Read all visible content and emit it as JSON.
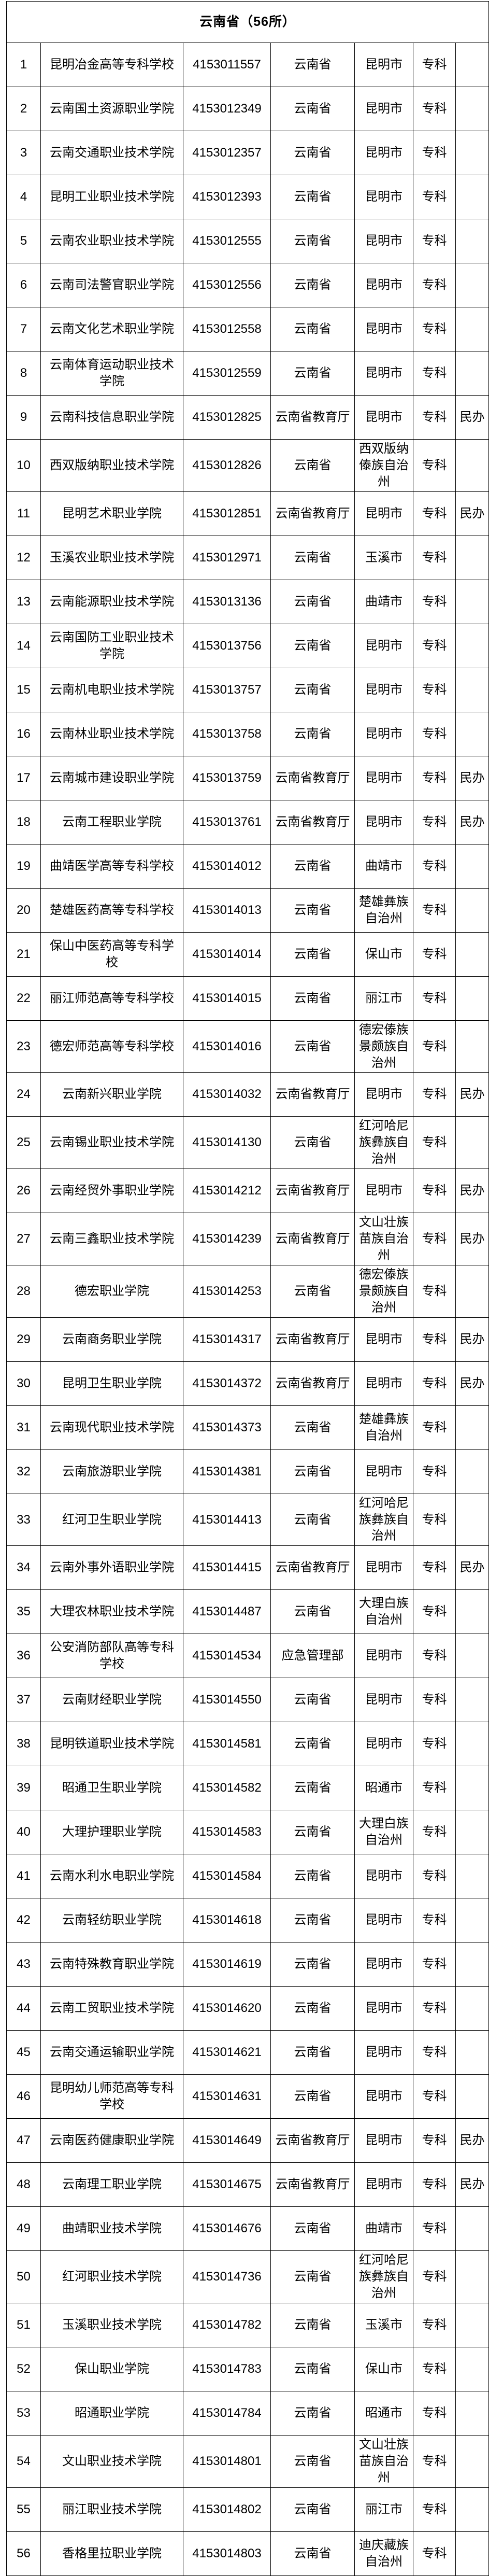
{
  "header": {
    "title": "云南省（56所）"
  },
  "rows": [
    {
      "no": "1",
      "name": "昆明冶金高等专科学校",
      "code": "4153011557",
      "dept": "云南省",
      "city": "昆明市",
      "level": "专科",
      "note": ""
    },
    {
      "no": "2",
      "name": "云南国土资源职业学院",
      "code": "4153012349",
      "dept": "云南省",
      "city": "昆明市",
      "level": "专科",
      "note": ""
    },
    {
      "no": "3",
      "name": "云南交通职业技术学院",
      "code": "4153012357",
      "dept": "云南省",
      "city": "昆明市",
      "level": "专科",
      "note": ""
    },
    {
      "no": "4",
      "name": "昆明工业职业技术学院",
      "code": "4153012393",
      "dept": "云南省",
      "city": "昆明市",
      "level": "专科",
      "note": ""
    },
    {
      "no": "5",
      "name": "云南农业职业技术学院",
      "code": "4153012555",
      "dept": "云南省",
      "city": "昆明市",
      "level": "专科",
      "note": ""
    },
    {
      "no": "6",
      "name": "云南司法警官职业学院",
      "code": "4153012556",
      "dept": "云南省",
      "city": "昆明市",
      "level": "专科",
      "note": ""
    },
    {
      "no": "7",
      "name": "云南文化艺术职业学院",
      "code": "4153012558",
      "dept": "云南省",
      "city": "昆明市",
      "level": "专科",
      "note": ""
    },
    {
      "no": "8",
      "name": "云南体育运动职业技术学院",
      "code": "4153012559",
      "dept": "云南省",
      "city": "昆明市",
      "level": "专科",
      "note": ""
    },
    {
      "no": "9",
      "name": "云南科技信息职业学院",
      "code": "4153012825",
      "dept": "云南省教育厅",
      "city": "昆明市",
      "level": "专科",
      "note": "民办"
    },
    {
      "no": "10",
      "name": "西双版纳职业技术学院",
      "code": "4153012826",
      "dept": "云南省",
      "city": "西双版纳傣族自治州",
      "level": "专科",
      "note": ""
    },
    {
      "no": "11",
      "name": "昆明艺术职业学院",
      "code": "4153012851",
      "dept": "云南省教育厅",
      "city": "昆明市",
      "level": "专科",
      "note": "民办"
    },
    {
      "no": "12",
      "name": "玉溪农业职业技术学院",
      "code": "4153012971",
      "dept": "云南省",
      "city": "玉溪市",
      "level": "专科",
      "note": ""
    },
    {
      "no": "13",
      "name": "云南能源职业技术学院",
      "code": "4153013136",
      "dept": "云南省",
      "city": "曲靖市",
      "level": "专科",
      "note": ""
    },
    {
      "no": "14",
      "name": "云南国防工业职业技术学院",
      "code": "4153013756",
      "dept": "云南省",
      "city": "昆明市",
      "level": "专科",
      "note": ""
    },
    {
      "no": "15",
      "name": "云南机电职业技术学院",
      "code": "4153013757",
      "dept": "云南省",
      "city": "昆明市",
      "level": "专科",
      "note": ""
    },
    {
      "no": "16",
      "name": "云南林业职业技术学院",
      "code": "4153013758",
      "dept": "云南省",
      "city": "昆明市",
      "level": "专科",
      "note": ""
    },
    {
      "no": "17",
      "name": "云南城市建设职业学院",
      "code": "4153013759",
      "dept": "云南省教育厅",
      "city": "昆明市",
      "level": "专科",
      "note": "民办"
    },
    {
      "no": "18",
      "name": "云南工程职业学院",
      "code": "4153013761",
      "dept": "云南省教育厅",
      "city": "昆明市",
      "level": "专科",
      "note": "民办"
    },
    {
      "no": "19",
      "name": "曲靖医学高等专科学校",
      "code": "4153014012",
      "dept": "云南省",
      "city": "曲靖市",
      "level": "专科",
      "note": ""
    },
    {
      "no": "20",
      "name": "楚雄医药高等专科学校",
      "code": "4153014013",
      "dept": "云南省",
      "city": "楚雄彝族自治州",
      "level": "专科",
      "note": ""
    },
    {
      "no": "21",
      "name": "保山中医药高等专科学校",
      "code": "4153014014",
      "dept": "云南省",
      "city": "保山市",
      "level": "专科",
      "note": ""
    },
    {
      "no": "22",
      "name": "丽江师范高等专科学校",
      "code": "4153014015",
      "dept": "云南省",
      "city": "丽江市",
      "level": "专科",
      "note": ""
    },
    {
      "no": "23",
      "name": "德宏师范高等专科学校",
      "code": "4153014016",
      "dept": "云南省",
      "city": "德宏傣族景颇族自治州",
      "level": "专科",
      "note": ""
    },
    {
      "no": "24",
      "name": "云南新兴职业学院",
      "code": "4153014032",
      "dept": "云南省教育厅",
      "city": "昆明市",
      "level": "专科",
      "note": "民办"
    },
    {
      "no": "25",
      "name": "云南锡业职业技术学院",
      "code": "4153014130",
      "dept": "云南省",
      "city": "红河哈尼族彝族自治州",
      "level": "专科",
      "note": ""
    },
    {
      "no": "26",
      "name": "云南经贸外事职业学院",
      "code": "4153014212",
      "dept": "云南省教育厅",
      "city": "昆明市",
      "level": "专科",
      "note": "民办"
    },
    {
      "no": "27",
      "name": "云南三鑫职业技术学院",
      "code": "4153014239",
      "dept": "云南省教育厅",
      "city": "文山壮族苗族自治州",
      "level": "专科",
      "note": "民办"
    },
    {
      "no": "28",
      "name": "德宏职业学院",
      "code": "4153014253",
      "dept": "云南省",
      "city": "德宏傣族景颇族自治州",
      "level": "专科",
      "note": ""
    },
    {
      "no": "29",
      "name": "云南商务职业学院",
      "code": "4153014317",
      "dept": "云南省教育厅",
      "city": "昆明市",
      "level": "专科",
      "note": "民办"
    },
    {
      "no": "30",
      "name": "昆明卫生职业学院",
      "code": "4153014372",
      "dept": "云南省教育厅",
      "city": "昆明市",
      "level": "专科",
      "note": "民办"
    },
    {
      "no": "31",
      "name": "云南现代职业技术学院",
      "code": "4153014373",
      "dept": "云南省",
      "city": "楚雄彝族自治州",
      "level": "专科",
      "note": ""
    },
    {
      "no": "32",
      "name": "云南旅游职业学院",
      "code": "4153014381",
      "dept": "云南省",
      "city": "昆明市",
      "level": "专科",
      "note": ""
    },
    {
      "no": "33",
      "name": "红河卫生职业学院",
      "code": "4153014413",
      "dept": "云南省",
      "city": "红河哈尼族彝族自治州",
      "level": "专科",
      "note": ""
    },
    {
      "no": "34",
      "name": "云南外事外语职业学院",
      "code": "4153014415",
      "dept": "云南省教育厅",
      "city": "昆明市",
      "level": "专科",
      "note": "民办"
    },
    {
      "no": "35",
      "name": "大理农林职业技术学院",
      "code": "4153014487",
      "dept": "云南省",
      "city": "大理白族自治州",
      "level": "专科",
      "note": ""
    },
    {
      "no": "36",
      "name": "公安消防部队高等专科学校",
      "code": "4153014534",
      "dept": "应急管理部",
      "city": "昆明市",
      "level": "专科",
      "note": ""
    },
    {
      "no": "37",
      "name": "云南财经职业学院",
      "code": "4153014550",
      "dept": "云南省",
      "city": "昆明市",
      "level": "专科",
      "note": ""
    },
    {
      "no": "38",
      "name": "昆明铁道职业技术学院",
      "code": "4153014581",
      "dept": "云南省",
      "city": "昆明市",
      "level": "专科",
      "note": ""
    },
    {
      "no": "39",
      "name": "昭通卫生职业学院",
      "code": "4153014582",
      "dept": "云南省",
      "city": "昭通市",
      "level": "专科",
      "note": ""
    },
    {
      "no": "40",
      "name": "大理护理职业学院",
      "code": "4153014583",
      "dept": "云南省",
      "city": "大理白族自治州",
      "level": "专科",
      "note": ""
    },
    {
      "no": "41",
      "name": "云南水利水电职业学院",
      "code": "4153014584",
      "dept": "云南省",
      "city": "昆明市",
      "level": "专科",
      "note": ""
    },
    {
      "no": "42",
      "name": "云南轻纺职业学院",
      "code": "4153014618",
      "dept": "云南省",
      "city": "昆明市",
      "level": "专科",
      "note": ""
    },
    {
      "no": "43",
      "name": "云南特殊教育职业学院",
      "code": "4153014619",
      "dept": "云南省",
      "city": "昆明市",
      "level": "专科",
      "note": ""
    },
    {
      "no": "44",
      "name": "云南工贸职业技术学院",
      "code": "4153014620",
      "dept": "云南省",
      "city": "昆明市",
      "level": "专科",
      "note": ""
    },
    {
      "no": "45",
      "name": "云南交通运输职业学院",
      "code": "4153014621",
      "dept": "云南省",
      "city": "昆明市",
      "level": "专科",
      "note": ""
    },
    {
      "no": "46",
      "name": "昆明幼儿师范高等专科学校",
      "code": "4153014631",
      "dept": "云南省",
      "city": "昆明市",
      "level": "专科",
      "note": ""
    },
    {
      "no": "47",
      "name": "云南医药健康职业学院",
      "code": "4153014649",
      "dept": "云南省教育厅",
      "city": "昆明市",
      "level": "专科",
      "note": "民办"
    },
    {
      "no": "48",
      "name": "云南理工职业学院",
      "code": "4153014675",
      "dept": "云南省教育厅",
      "city": "昆明市",
      "level": "专科",
      "note": "民办"
    },
    {
      "no": "49",
      "name": "曲靖职业技术学院",
      "code": "4153014676",
      "dept": "云南省",
      "city": "曲靖市",
      "level": "专科",
      "note": ""
    },
    {
      "no": "50",
      "name": "红河职业技术学院",
      "code": "4153014736",
      "dept": "云南省",
      "city": "红河哈尼族彝族自治州",
      "level": "专科",
      "note": ""
    },
    {
      "no": "51",
      "name": "玉溪职业技术学院",
      "code": "4153014782",
      "dept": "云南省",
      "city": "玉溪市",
      "level": "专科",
      "note": ""
    },
    {
      "no": "52",
      "name": "保山职业学院",
      "code": "4153014783",
      "dept": "云南省",
      "city": "保山市",
      "level": "专科",
      "note": ""
    },
    {
      "no": "53",
      "name": "昭通职业学院",
      "code": "4153014784",
      "dept": "云南省",
      "city": "昭通市",
      "level": "专科",
      "note": ""
    },
    {
      "no": "54",
      "name": "文山职业技术学院",
      "code": "4153014801",
      "dept": "云南省",
      "city": "文山壮族苗族自治州",
      "level": "专科",
      "note": ""
    },
    {
      "no": "55",
      "name": "丽江职业技术学院",
      "code": "4153014802",
      "dept": "云南省",
      "city": "丽江市",
      "level": "专科",
      "note": ""
    },
    {
      "no": "56",
      "name": "香格里拉职业学院",
      "code": "4153014803",
      "dept": "云南省",
      "city": "迪庆藏族自治州",
      "level": "专科",
      "note": ""
    }
  ]
}
